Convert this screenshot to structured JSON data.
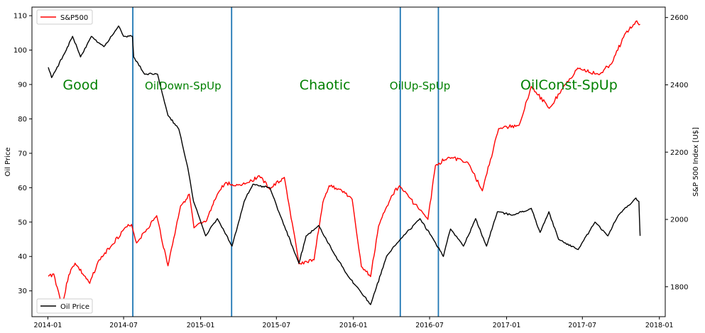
{
  "chart_data": {
    "type": "line",
    "title": "",
    "xlabel": "",
    "ylabel_left": "Oil Price",
    "ylabel_right": "S&P 500 Index [U$]",
    "x_ticks": [
      "2014-01",
      "2014-07",
      "2015-01",
      "2015-07",
      "2016-01",
      "2016-07",
      "2017-01",
      "2017-07",
      "2018-01"
    ],
    "y_left_ticks": [
      30,
      40,
      50,
      60,
      70,
      80,
      90,
      100,
      110
    ],
    "y_right_ticks": [
      1800,
      2000,
      2200,
      2400,
      2600
    ],
    "xlim": [
      "2013-11-24",
      "2018-01-15"
    ],
    "ylim_left": [
      22.5,
      112.5
    ],
    "ylim_right": [
      1711,
      2631
    ],
    "grid": false,
    "legends": [
      {
        "location": "upper-left",
        "entries": [
          {
            "label": "S&P500",
            "color": "#ff0000"
          }
        ]
      },
      {
        "location": "lower-left",
        "entries": [
          {
            "label": "Oil Price",
            "color": "#000000"
          }
        ]
      }
    ],
    "vertical_lines": {
      "color": "#1f77b4",
      "dates": [
        "2014-07-23",
        "2015-03-16",
        "2016-04-22",
        "2016-07-22"
      ]
    },
    "annotations": [
      {
        "text": "Good",
        "date": "2014-03-20",
        "y": 90,
        "color": "#008000",
        "size": "large"
      },
      {
        "text": "OilDown-SpUp",
        "date": "2014-11-20",
        "y": 90,
        "color": "#008000",
        "size": "medium"
      },
      {
        "text": "Chaotic",
        "date": "2015-10-25",
        "y": 90,
        "color": "#008000",
        "size": "large"
      },
      {
        "text": "OilUp-SpUp",
        "date": "2016-06-08",
        "y": 90,
        "color": "#008000",
        "size": "medium"
      },
      {
        "text": "OilConst-SpUp",
        "date": "2017-05-30",
        "y": 90,
        "color": "#008000",
        "size": "large"
      }
    ],
    "series": [
      {
        "name": "S&P500",
        "axis": "right",
        "color": "#ff0000",
        "points": [
          [
            "2014-01-02",
            1831
          ],
          [
            "2014-01-15",
            1838
          ],
          [
            "2014-02-04",
            1742
          ],
          [
            "2014-02-20",
            1835
          ],
          [
            "2014-03-07",
            1870
          ],
          [
            "2014-04-11",
            1810
          ],
          [
            "2014-05-01",
            1875
          ],
          [
            "2014-06-02",
            1922
          ],
          [
            "2014-07-01",
            1970
          ],
          [
            "2014-07-20",
            1985
          ],
          [
            "2014-08-01",
            1930
          ],
          [
            "2014-09-18",
            2011
          ],
          [
            "2014-10-15",
            1862
          ],
          [
            "2014-11-14",
            2040
          ],
          [
            "2014-12-05",
            2075
          ],
          [
            "2014-12-16",
            1975
          ],
          [
            "2015-01-15",
            1995
          ],
          [
            "2015-02-10",
            2075
          ],
          [
            "2015-03-02",
            2110
          ],
          [
            "2015-03-20",
            2100
          ],
          [
            "2015-04-25",
            2110
          ],
          [
            "2015-05-21",
            2130
          ],
          [
            "2015-06-15",
            2090
          ],
          [
            "2015-07-20",
            2125
          ],
          [
            "2015-08-24",
            1868
          ],
          [
            "2015-09-29",
            1880
          ],
          [
            "2015-10-20",
            2050
          ],
          [
            "2015-11-04",
            2100
          ],
          [
            "2015-12-01",
            2090
          ],
          [
            "2015-12-29",
            2060
          ],
          [
            "2016-01-20",
            1860
          ],
          [
            "2016-02-11",
            1830
          ],
          [
            "2016-03-01",
            1980
          ],
          [
            "2016-04-01",
            2070
          ],
          [
            "2016-04-20",
            2100
          ],
          [
            "2016-06-27",
            2000
          ],
          [
            "2016-07-15",
            2160
          ],
          [
            "2016-08-15",
            2185
          ],
          [
            "2016-09-30",
            2170
          ],
          [
            "2016-11-04",
            2085
          ],
          [
            "2016-12-13",
            2270
          ],
          [
            "2017-01-31",
            2280
          ],
          [
            "2017-03-01",
            2395
          ],
          [
            "2017-04-13",
            2330
          ],
          [
            "2017-05-20",
            2400
          ],
          [
            "2017-06-20",
            2450
          ],
          [
            "2017-08-10",
            2430
          ],
          [
            "2017-09-10",
            2465
          ],
          [
            "2017-10-10",
            2550
          ],
          [
            "2017-11-08",
            2590
          ],
          [
            "2017-11-16",
            2580
          ]
        ]
      },
      {
        "name": "Oil Price",
        "axis": "left",
        "color": "#000000",
        "points": [
          [
            "2014-01-02",
            95
          ],
          [
            "2014-01-10",
            92
          ],
          [
            "2014-02-14",
            100
          ],
          [
            "2014-03-01",
            104
          ],
          [
            "2014-03-20",
            98
          ],
          [
            "2014-04-15",
            104
          ],
          [
            "2014-05-15",
            101
          ],
          [
            "2014-06-19",
            107
          ],
          [
            "2014-07-01",
            104
          ],
          [
            "2014-07-22",
            104
          ],
          [
            "2014-07-25",
            98
          ],
          [
            "2014-08-20",
            93
          ],
          [
            "2014-09-20",
            93
          ],
          [
            "2014-10-15",
            81
          ],
          [
            "2014-11-10",
            77
          ],
          [
            "2014-12-01",
            66
          ],
          [
            "2014-12-15",
            56
          ],
          [
            "2015-01-13",
            46
          ],
          [
            "2015-02-10",
            51
          ],
          [
            "2015-03-17",
            43
          ],
          [
            "2015-04-15",
            56
          ],
          [
            "2015-05-06",
            61
          ],
          [
            "2015-06-15",
            60
          ],
          [
            "2015-07-10",
            52
          ],
          [
            "2015-08-24",
            38
          ],
          [
            "2015-09-10",
            46
          ],
          [
            "2015-10-10",
            49
          ],
          [
            "2015-11-15",
            41
          ],
          [
            "2015-12-21",
            34
          ],
          [
            "2016-01-11",
            31
          ],
          [
            "2016-02-11",
            26
          ],
          [
            "2016-03-20",
            40
          ],
          [
            "2016-04-22",
            45
          ],
          [
            "2016-06-08",
            51
          ],
          [
            "2016-07-10",
            45
          ],
          [
            "2016-08-03",
            40
          ],
          [
            "2016-08-20",
            48
          ],
          [
            "2016-09-20",
            43
          ],
          [
            "2016-10-19",
            51
          ],
          [
            "2016-11-14",
            43
          ],
          [
            "2016-12-10",
            53
          ],
          [
            "2017-01-15",
            52
          ],
          [
            "2017-03-01",
            54
          ],
          [
            "2017-03-22",
            47
          ],
          [
            "2017-04-12",
            53
          ],
          [
            "2017-05-05",
            45
          ],
          [
            "2017-06-21",
            42
          ],
          [
            "2017-07-31",
            50
          ],
          [
            "2017-08-31",
            46
          ],
          [
            "2017-09-25",
            52
          ],
          [
            "2017-11-06",
            57
          ],
          [
            "2017-11-13",
            56
          ],
          [
            "2017-11-16",
            46
          ]
        ]
      }
    ]
  }
}
